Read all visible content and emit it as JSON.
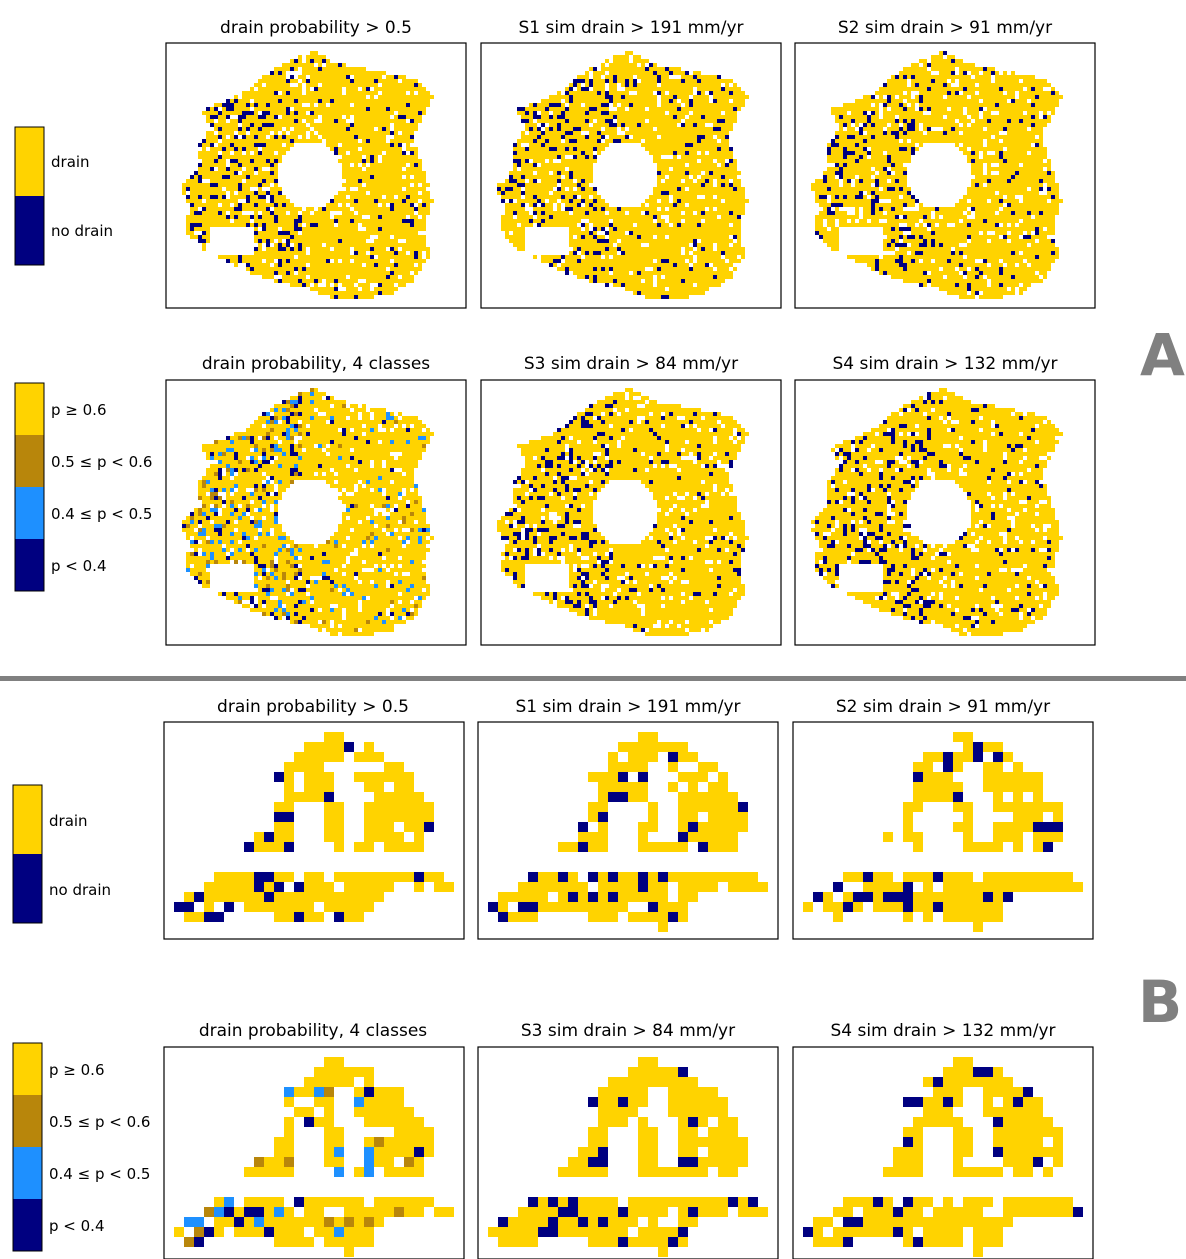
{
  "colors": {
    "drain": "#FFD300",
    "no_drain": "#000080",
    "p_ge_0_6": "#FFD300",
    "p_0_5_to_0_6": "#B8860B",
    "p_0_4_to_0_5": "#1E90FF",
    "p_lt_0_4": "#000080",
    "divider": "#808080"
  },
  "sections": [
    {
      "label": "A",
      "legend_binary": [
        "drain",
        "no drain"
      ],
      "legend_classes": [
        "p ≥ 0.6",
        "0.5 ≤ p < 0.6",
        "0.4 ≤ p < 0.5",
        "p < 0.4"
      ],
      "titles_row1": [
        "drain probability > 0.5",
        "S1 sim drain > 191 mm/yr",
        "S2 sim drain > 91 mm/yr"
      ],
      "titles_row2": [
        "drain probability, 4 classes",
        "S3 sim drain > 84 mm/yr",
        "S4 sim drain > 132 mm/yr"
      ]
    },
    {
      "label": "B",
      "legend_binary": [
        "drain",
        "no drain"
      ],
      "legend_classes": [
        "p ≥ 0.6",
        "0.5 ≤ p < 0.6",
        "0.4 ≤ p < 0.5",
        "p < 0.4"
      ],
      "titles_row1": [
        "drain probability > 0.5",
        "S1 sim drain > 191 mm/yr",
        "S2 sim drain > 91 mm/yr"
      ],
      "titles_row2": [
        "drain probability, 4 classes",
        "S3 sim drain > 84 mm/yr",
        "S4 sim drain > 132 mm/yr"
      ]
    }
  ],
  "chart_data": [
    {
      "type": "heatmap",
      "title": "drain probability > 0.5",
      "categories": [
        "drain",
        "no drain"
      ],
      "colors": [
        "#FFD300",
        "#000080"
      ],
      "resolution": "fine",
      "noise_share": 0.18
    }
  ]
}
